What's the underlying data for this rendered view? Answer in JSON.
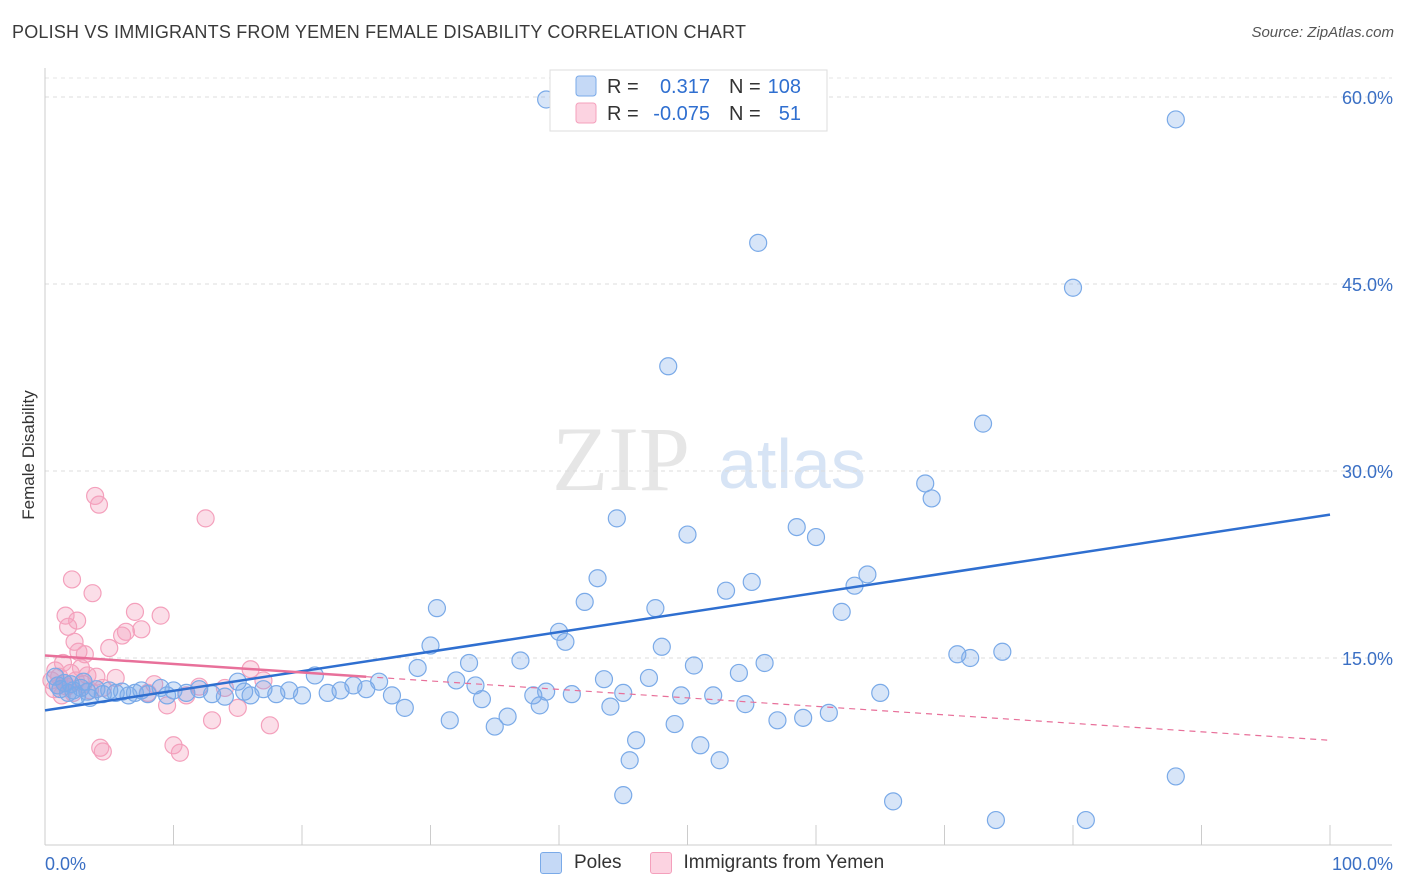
{
  "header": {
    "title": "POLISH VS IMMIGRANTS FROM YEMEN FEMALE DISABILITY CORRELATION CHART",
    "source": "Source: ZipAtlas.com"
  },
  "watermark": {
    "zip": "ZIP",
    "atlas": "atlas"
  },
  "stats_legend": [
    {
      "r_label": "R =",
      "r_value": "0.317",
      "n_label": "N =",
      "n_value": "108"
    },
    {
      "r_label": "R =",
      "r_value": "-0.075",
      "n_label": "N =",
      "n_value": "51"
    }
  ],
  "chart_data": {
    "type": "scatter",
    "title": "POLISH VS IMMIGRANTS FROM YEMEN FEMALE DISABILITY CORRELATION CHART",
    "xlabel": "",
    "ylabel": "Female Disability",
    "xlim": [
      0,
      100
    ],
    "ylim": [
      0,
      60
    ],
    "x_tick_labels": [
      "0.0%",
      "100.0%"
    ],
    "y_tick_labels": [
      "15.0%",
      "30.0%",
      "45.0%",
      "60.0%"
    ],
    "y_ticks": [
      15,
      30,
      45,
      60
    ],
    "grid": "horizontal dashed",
    "legend_position": "bottom-center",
    "colors": {
      "poles": "#7aaae8",
      "poles_line": "#2f6fd0",
      "yemen": "#f4a0bc",
      "yemen_line": "#e8709a"
    },
    "series": [
      {
        "name": "Poles",
        "r": 0.317,
        "n": 108,
        "trend": {
          "x": [
            0,
            100
          ],
          "y": [
            10.8,
            26.5
          ]
        },
        "points": [
          [
            0.8,
            13.5
          ],
          [
            1.0,
            12.8
          ],
          [
            1.2,
            12.5
          ],
          [
            1.5,
            13.0
          ],
          [
            1.8,
            12.2
          ],
          [
            2.0,
            12.9
          ],
          [
            2.2,
            12.4
          ],
          [
            2.5,
            12.0
          ],
          [
            2.8,
            12.6
          ],
          [
            3.0,
            13.1
          ],
          [
            3.3,
            12.3
          ],
          [
            3.5,
            11.8
          ],
          [
            4.0,
            12.5
          ],
          [
            4.5,
            12.1
          ],
          [
            5.0,
            12.4
          ],
          [
            5.5,
            12.2
          ],
          [
            6.0,
            12.3
          ],
          [
            6.5,
            12.0
          ],
          [
            7.0,
            12.2
          ],
          [
            7.5,
            12.4
          ],
          [
            8.0,
            12.1
          ],
          [
            9.0,
            12.6
          ],
          [
            9.5,
            12.0
          ],
          [
            10.0,
            12.4
          ],
          [
            11.0,
            12.2
          ],
          [
            12.0,
            12.5
          ],
          [
            13.0,
            12.1
          ],
          [
            14.0,
            11.9
          ],
          [
            15.0,
            13.1
          ],
          [
            15.5,
            12.3
          ],
          [
            16.0,
            12.0
          ],
          [
            17.0,
            12.5
          ],
          [
            18.0,
            12.1
          ],
          [
            19.0,
            12.4
          ],
          [
            20.0,
            12.0
          ],
          [
            21.0,
            13.6
          ],
          [
            22.0,
            12.2
          ],
          [
            23.0,
            12.4
          ],
          [
            24.0,
            12.8
          ],
          [
            25.0,
            12.5
          ],
          [
            26.0,
            13.1
          ],
          [
            27.0,
            12.0
          ],
          [
            28.0,
            11.0
          ],
          [
            29.0,
            14.2
          ],
          [
            30.0,
            16.0
          ],
          [
            30.5,
            19.0
          ],
          [
            31.5,
            10.0
          ],
          [
            32.0,
            13.2
          ],
          [
            33.0,
            14.6
          ],
          [
            33.5,
            12.8
          ],
          [
            34.0,
            11.7
          ],
          [
            35.0,
            9.5
          ],
          [
            36.0,
            10.3
          ],
          [
            37.0,
            14.8
          ],
          [
            38.0,
            12.0
          ],
          [
            38.5,
            11.2
          ],
          [
            39.0,
            12.3
          ],
          [
            40.0,
            17.1
          ],
          [
            40.5,
            16.3
          ],
          [
            41.0,
            12.1
          ],
          [
            42.0,
            19.5
          ],
          [
            43.0,
            21.4
          ],
          [
            43.5,
            13.3
          ],
          [
            44.0,
            11.1
          ],
          [
            45.0,
            12.2
          ],
          [
            46.0,
            8.4
          ],
          [
            47.0,
            13.4
          ],
          [
            47.5,
            19.0
          ],
          [
            48.0,
            15.9
          ],
          [
            49.0,
            9.7
          ],
          [
            49.5,
            12.0
          ],
          [
            50.0,
            24.9
          ],
          [
            50.5,
            14.4
          ],
          [
            51.0,
            8.0
          ],
          [
            52.0,
            12.0
          ],
          [
            53.0,
            20.4
          ],
          [
            54.0,
            13.8
          ],
          [
            54.5,
            11.3
          ],
          [
            55.0,
            21.1
          ],
          [
            56.0,
            14.6
          ],
          [
            57.0,
            10.0
          ],
          [
            58.5,
            25.5
          ],
          [
            59.0,
            10.2
          ],
          [
            60.0,
            24.7
          ],
          [
            61.0,
            10.6
          ],
          [
            62.0,
            18.7
          ],
          [
            63.0,
            20.8
          ],
          [
            65.0,
            12.2
          ],
          [
            66.0,
            3.5
          ],
          [
            68.5,
            29.0
          ],
          [
            69.0,
            27.8
          ],
          [
            71.0,
            15.3
          ],
          [
            72.0,
            15.0
          ],
          [
            73.0,
            33.8
          ],
          [
            74.5,
            15.5
          ],
          [
            44.5,
            26.2
          ],
          [
            48.5,
            38.4
          ],
          [
            55.5,
            48.3
          ],
          [
            45.0,
            4.0
          ],
          [
            52.5,
            6.8
          ],
          [
            64.0,
            21.7
          ],
          [
            74.0,
            2.0
          ],
          [
            81.0,
            2.0
          ],
          [
            80.0,
            44.7
          ],
          [
            88.0,
            58.2
          ],
          [
            88.0,
            5.5
          ],
          [
            39.0,
            59.8
          ],
          [
            45.5,
            6.8
          ]
        ]
      },
      {
        "name": "Immigrants from Yemen",
        "r": -0.075,
        "n": 51,
        "trend": {
          "x": [
            0,
            100
          ],
          "y": [
            15.2,
            8.4
          ]
        },
        "points": [
          [
            0.5,
            13.2
          ],
          [
            0.7,
            12.5
          ],
          [
            0.8,
            14.0
          ],
          [
            1.0,
            12.8
          ],
          [
            1.1,
            13.5
          ],
          [
            1.3,
            12.0
          ],
          [
            1.4,
            14.6
          ],
          [
            1.5,
            13.0
          ],
          [
            1.6,
            18.4
          ],
          [
            1.7,
            12.7
          ],
          [
            1.8,
            17.5
          ],
          [
            2.0,
            13.8
          ],
          [
            2.1,
            21.3
          ],
          [
            2.2,
            12.2
          ],
          [
            2.3,
            16.3
          ],
          [
            2.4,
            13.2
          ],
          [
            2.5,
            18.0
          ],
          [
            2.6,
            15.5
          ],
          [
            2.8,
            14.2
          ],
          [
            3.0,
            12.9
          ],
          [
            3.1,
            15.3
          ],
          [
            3.3,
            13.6
          ],
          [
            3.5,
            12.4
          ],
          [
            3.7,
            20.2
          ],
          [
            3.9,
            28.0
          ],
          [
            4.0,
            13.5
          ],
          [
            4.2,
            27.3
          ],
          [
            4.5,
            12.6
          ],
          [
            5.0,
            15.8
          ],
          [
            5.5,
            13.4
          ],
          [
            6.0,
            16.8
          ],
          [
            6.3,
            17.1
          ],
          [
            7.0,
            18.7
          ],
          [
            7.5,
            17.3
          ],
          [
            8.0,
            12.2
          ],
          [
            8.5,
            12.9
          ],
          [
            9.0,
            18.4
          ],
          [
            9.5,
            11.2
          ],
          [
            10.0,
            8.0
          ],
          [
            10.5,
            7.4
          ],
          [
            11.0,
            12.0
          ],
          [
            12.0,
            12.7
          ],
          [
            12.5,
            26.2
          ],
          [
            13.0,
            10.0
          ],
          [
            14.0,
            12.6
          ],
          [
            15.0,
            11.0
          ],
          [
            16.0,
            14.1
          ],
          [
            17.0,
            13.2
          ],
          [
            4.3,
            7.8
          ],
          [
            4.5,
            7.5
          ],
          [
            17.5,
            9.6
          ]
        ]
      }
    ]
  },
  "bottom_legend": [
    {
      "label": "Poles"
    },
    {
      "label": "Immigrants from Yemen"
    }
  ]
}
